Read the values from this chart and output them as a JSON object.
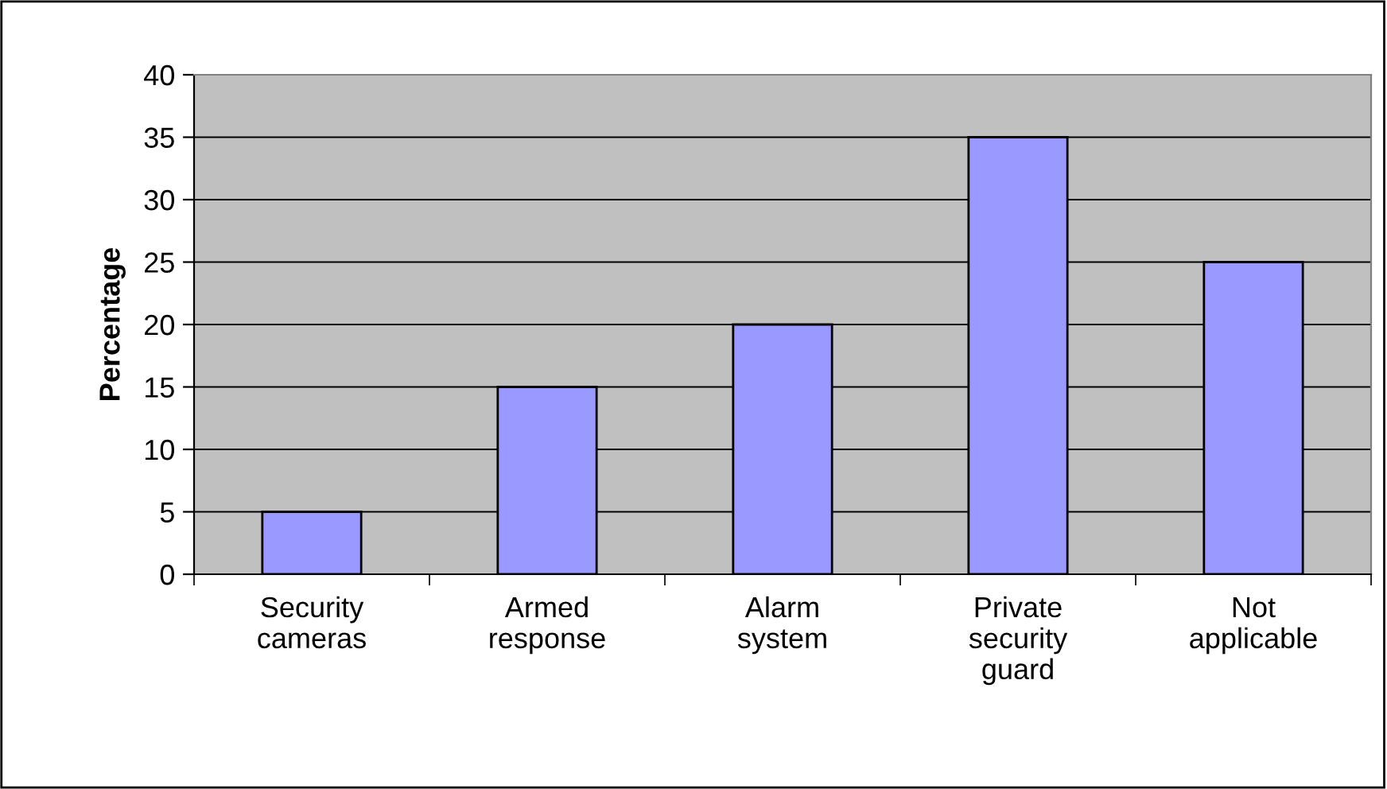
{
  "chart_data": {
    "type": "bar",
    "ylabel": "Percentage",
    "categories": [
      "Security\ncameras",
      "Armed\nresponse",
      "Alarm\nsystem",
      "Private\nsecurity\nguard",
      "Not\napplicable"
    ],
    "values": [
      5,
      15,
      20,
      35,
      25
    ],
    "color": "#9999ff",
    "ylim": [
      0,
      40
    ],
    "yticks": [
      0,
      5,
      10,
      15,
      20,
      25,
      30,
      35,
      40
    ],
    "grid": "y",
    "legend": false
  }
}
